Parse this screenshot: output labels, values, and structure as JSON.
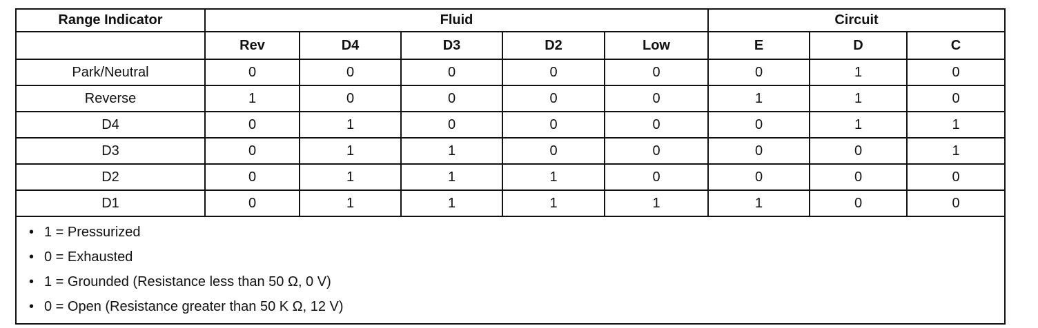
{
  "table": {
    "group_headers": [
      "Range Indicator",
      "Fluid",
      "Circuit"
    ],
    "columns": [
      "Rev",
      "D4",
      "D3",
      "D2",
      "Low",
      "E",
      "D",
      "C"
    ],
    "rows": [
      [
        "Park/Neutral",
        0,
        0,
        0,
        0,
        0,
        0,
        1,
        0
      ],
      [
        "Reverse",
        1,
        0,
        0,
        0,
        0,
        1,
        1,
        0
      ],
      [
        "D4",
        0,
        1,
        0,
        0,
        0,
        0,
        1,
        1
      ],
      [
        "D3",
        0,
        1,
        1,
        0,
        0,
        0,
        0,
        1
      ],
      [
        "D2",
        0,
        1,
        1,
        1,
        0,
        0,
        0,
        0
      ],
      [
        "D1",
        0,
        1,
        1,
        1,
        1,
        1,
        0,
        0
      ]
    ],
    "notes": [
      "1 = Pressurized",
      "0 = Exhausted",
      "1 = Grounded (Resistance less than 50 Ω, 0 V)",
      "0 = Open (Resistance greater than 50 K Ω, 12 V)"
    ]
  }
}
